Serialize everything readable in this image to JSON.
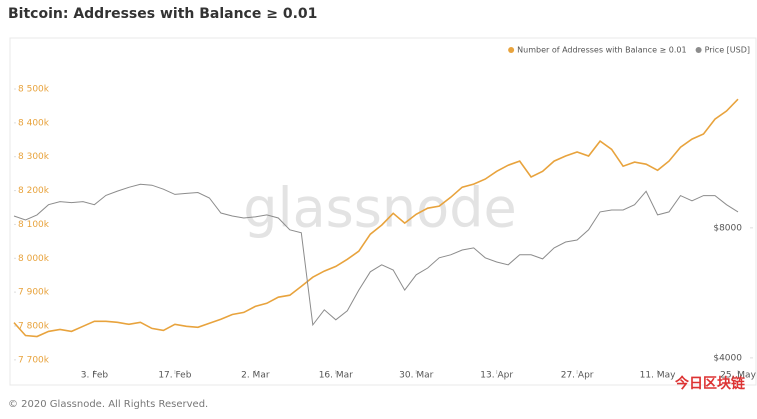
{
  "chart_data": {
    "type": "line",
    "title": "Bitcoin: Addresses with Balance ≥ 0.01",
    "watermark": "glassnode",
    "footer": "© 2020 Glassnode. All Rights Reserved.",
    "corner_logo": "今日区块链",
    "legend": "top-right",
    "categories": [
      null,
      null,
      null,
      null,
      null,
      null,
      null,
      "3. Feb",
      null,
      null,
      null,
      null,
      null,
      null,
      "17. Feb",
      null,
      null,
      null,
      null,
      null,
      null,
      "2. Mar",
      null,
      null,
      null,
      null,
      null,
      null,
      "16. Mar",
      null,
      null,
      null,
      null,
      null,
      null,
      "30. Mar",
      null,
      null,
      null,
      null,
      null,
      null,
      "13. Apr",
      null,
      null,
      null,
      null,
      null,
      null,
      "27. Apr",
      null,
      null,
      null,
      null,
      null,
      null,
      "11. May",
      null,
      null,
      null,
      null,
      null,
      null,
      "25. May"
    ],
    "ylim": [
      7670000,
      8630000
    ],
    "yticks": [
      {
        "value": 7700000,
        "label": "7 700k"
      },
      {
        "value": 7800000,
        "label": "7 800k"
      },
      {
        "value": 7900000,
        "label": "7 900k"
      },
      {
        "value": 8000000,
        "label": "8 000k"
      },
      {
        "value": 8100000,
        "label": "8 100k"
      },
      {
        "value": 8200000,
        "label": "8 200k"
      },
      {
        "value": 8300000,
        "label": "8 300k"
      },
      {
        "value": 8400000,
        "label": "8 400k"
      },
      {
        "value": 8500000,
        "label": "8 500k"
      }
    ],
    "y2lim": [
      3750,
      21200
    ],
    "y2scale": "log",
    "y2ticks": [
      {
        "value": 4000,
        "label": "$4000"
      },
      {
        "value": 8000,
        "label": "$8000"
      }
    ],
    "series": [
      {
        "name": "Number of Addresses with Balance ≥ 0.01",
        "color": "#e8a33d",
        "values": [
          7810000,
          7772000,
          7769000,
          7784000,
          7790000,
          7784000,
          7799000,
          7814000,
          7814000,
          7811000,
          7805000,
          7811000,
          7793000,
          7787000,
          7805000,
          7799000,
          7796000,
          7808000,
          7820000,
          7834000,
          7840000,
          7858000,
          7867000,
          7885000,
          7891000,
          7917000,
          7944000,
          7962000,
          7976000,
          7997000,
          8021000,
          8071000,
          8098000,
          8133000,
          8104000,
          8130000,
          8148000,
          8154000,
          8180000,
          8210000,
          8219000,
          8234000,
          8257000,
          8275000,
          8287000,
          8240000,
          8257000,
          8287000,
          8302000,
          8314000,
          8302000,
          8346000,
          8322000,
          8272000,
          8284000,
          8278000,
          8260000,
          8287000,
          8328000,
          8352000,
          8367000,
          8411000,
          8435000,
          8470000
        ]
      },
      {
        "name": "Price [USD]",
        "color": "#8c8c8c",
        "axis": "y2",
        "values": [
          8520,
          8340,
          8570,
          9050,
          9200,
          9150,
          9200,
          9050,
          9510,
          9730,
          9930,
          10090,
          10040,
          9830,
          9560,
          9610,
          9660,
          9380,
          8660,
          8520,
          8430,
          8480,
          8570,
          8430,
          7915,
          7790,
          4770,
          5170,
          4900,
          5140,
          5740,
          6330,
          6570,
          6390,
          5740,
          6230,
          6460,
          6820,
          6930,
          7110,
          7190,
          6820,
          6670,
          6570,
          6930,
          6930,
          6780,
          7190,
          7420,
          7500,
          7915,
          8710,
          8800,
          8800,
          9050,
          9720,
          8570,
          8710,
          9500,
          9240,
          9500,
          9500,
          9050,
          8710
        ]
      }
    ]
  }
}
